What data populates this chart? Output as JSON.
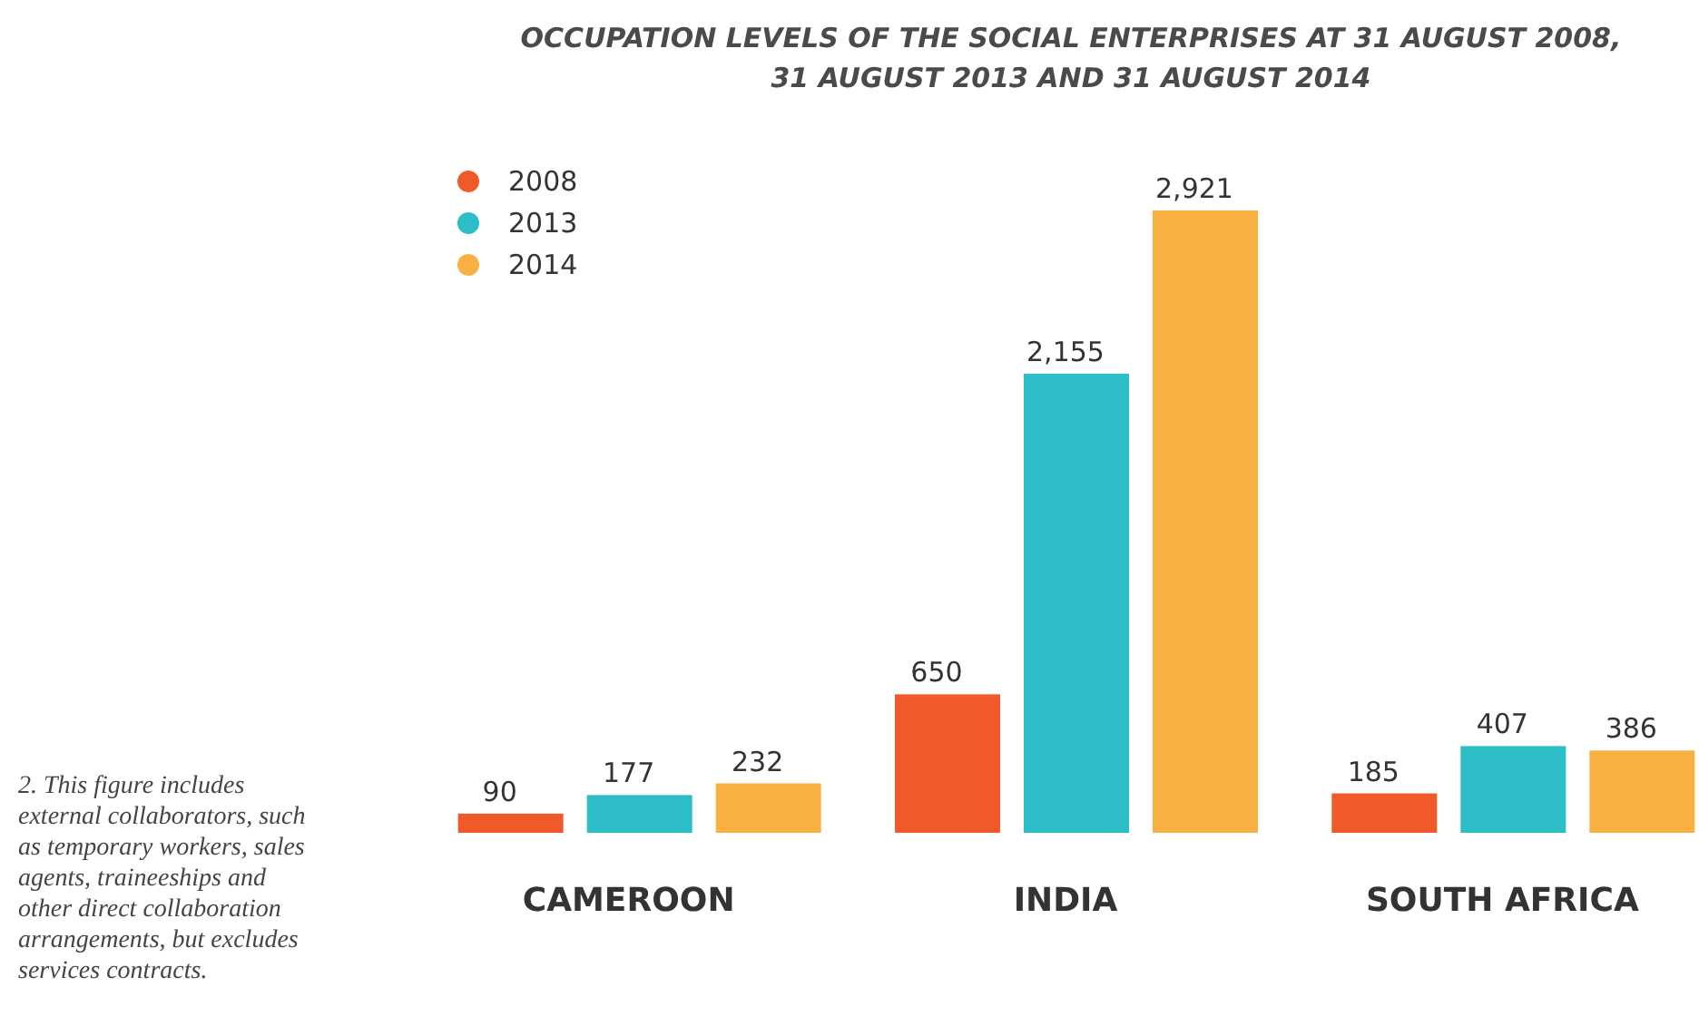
{
  "chart_data": {
    "type": "bar",
    "title": "OCCUPATION LEVELS OF THE SOCIAL ENTERPRISES AT 31 AUGUST 2008, 31 AUGUST 2013 AND 31 AUGUST 2014",
    "categories": [
      "CAMEROON",
      "INDIA",
      "SOUTH AFRICA"
    ],
    "series": [
      {
        "name": "2008",
        "color": "#f05a2b",
        "values": [
          90,
          650,
          185
        ],
        "value_labels": [
          "90",
          "650",
          "185"
        ]
      },
      {
        "name": "2013",
        "color": "#2dbdc6",
        "values": [
          177,
          2155,
          407
        ],
        "value_labels": [
          "177",
          "2,155",
          "407"
        ]
      },
      {
        "name": "2014",
        "color": "#f9b043",
        "values": [
          232,
          2921,
          386
        ],
        "value_labels": [
          "232",
          "2,921",
          "386"
        ]
      }
    ],
    "legend": "top left",
    "annotations": [
      "2. This figure includes external collaborators, such as temporary workers, sales agents, traineeships and other direct collaboration arrangements, but excludes services contracts."
    ]
  }
}
